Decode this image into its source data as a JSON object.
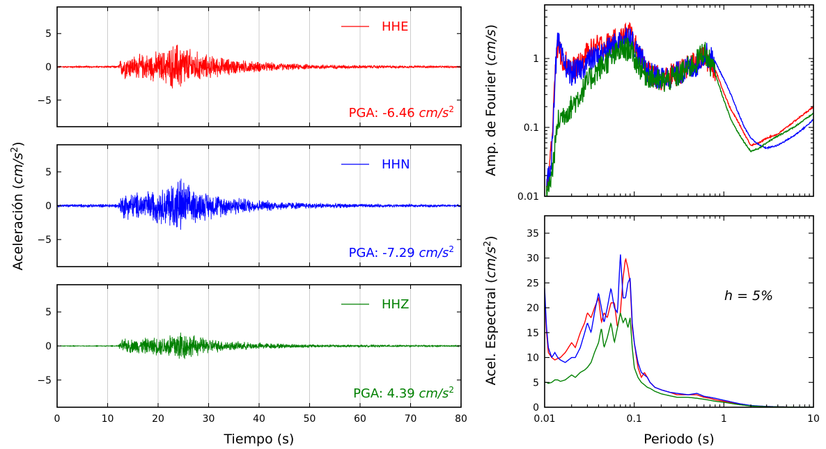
{
  "colors": {
    "HHE": "#ff0000",
    "HHN": "#0000ff",
    "HHZ": "#008000"
  },
  "chart_data": [
    {
      "type": "line",
      "panel": "acc-HHE",
      "series": [
        {
          "name": "HHE",
          "color": "#ff0000"
        }
      ],
      "pga_label": "PGA: -6.46 ",
      "pga_unit": "cm/s",
      "pga_exp": "2",
      "x_range": [
        0,
        80
      ],
      "ylim": [
        -9,
        9
      ],
      "yticks": [
        "5",
        "0",
        "−5"
      ],
      "envelope_t": [
        0,
        12,
        13,
        15,
        18,
        21,
        23,
        24.5,
        26,
        29,
        32,
        36,
        40,
        45,
        50,
        55,
        60,
        65,
        70,
        80
      ],
      "envelope_a": [
        0.12,
        0.15,
        2.1,
        2.0,
        2.3,
        2.8,
        3.9,
        4.4,
        3.2,
        2.2,
        1.7,
        1.2,
        0.9,
        0.6,
        0.45,
        0.35,
        0.3,
        0.25,
        0.2,
        0.15
      ]
    },
    {
      "type": "line",
      "panel": "acc-HHN",
      "series": [
        {
          "name": "HHN",
          "color": "#0000ff"
        }
      ],
      "pga_label": "PGA: -7.29 ",
      "pga_unit": "cm/s",
      "pga_exp": "2",
      "x_range": [
        0,
        80
      ],
      "ylim": [
        -9,
        9
      ],
      "yticks": [
        "5",
        "0",
        "−5"
      ],
      "envelope_t": [
        0,
        12,
        13,
        15,
        18,
        21,
        23,
        24.5,
        26,
        29,
        32,
        36,
        40,
        45,
        50,
        55,
        60,
        65,
        70,
        80
      ],
      "envelope_a": [
        0.25,
        0.3,
        2.2,
        2.2,
        2.6,
        3.0,
        4.6,
        4.8,
        3.3,
        2.4,
        1.9,
        1.4,
        1.0,
        0.7,
        0.5,
        0.4,
        0.32,
        0.28,
        0.25,
        0.2
      ]
    },
    {
      "type": "line",
      "panel": "acc-HHZ",
      "series": [
        {
          "name": "HHZ",
          "color": "#008000"
        }
      ],
      "pga_label": "PGA: 4.39 ",
      "pga_unit": "cm/s",
      "pga_exp": "2",
      "x_range": [
        0,
        80
      ],
      "ylim": [
        -9,
        9
      ],
      "yticks": [
        "5",
        "0",
        "−5"
      ],
      "envelope_t": [
        0,
        12,
        13,
        15,
        18,
        21,
        23,
        24.5,
        26,
        29,
        32,
        36,
        40,
        45,
        50,
        55,
        60,
        65,
        70,
        80
      ],
      "envelope_a": [
        0.05,
        0.06,
        1.2,
        1.2,
        1.4,
        1.6,
        2.6,
        2.9,
        2.0,
        1.4,
        1.0,
        0.7,
        0.55,
        0.4,
        0.3,
        0.22,
        0.18,
        0.15,
        0.12,
        0.1
      ]
    },
    {
      "type": "line",
      "panel": "fourier",
      "xscale": "log",
      "yscale": "log",
      "x_range": [
        0.01,
        10
      ],
      "ylim": [
        0.01,
        6
      ],
      "yticks": [
        "1",
        "0.1",
        "0.01"
      ],
      "series": [
        {
          "name": "HHE",
          "color": "#ff0000",
          "x": [
            0.0105,
            0.012,
            0.013,
            0.014,
            0.016,
            0.02,
            0.025,
            0.03,
            0.04,
            0.05,
            0.07,
            0.09,
            0.1,
            0.13,
            0.15,
            0.2,
            0.3,
            0.5,
            0.6,
            0.8,
            1.0,
            1.2,
            1.4,
            1.7,
            2.0,
            2.5,
            3,
            4,
            6,
            8,
            10
          ],
          "y": [
            0.012,
            0.05,
            0.7,
            1.5,
            1.0,
            0.7,
            0.8,
            1.2,
            1.5,
            1.6,
            1.9,
            2.5,
            1.6,
            0.8,
            0.6,
            0.5,
            0.6,
            0.9,
            1.1,
            0.7,
            0.32,
            0.18,
            0.13,
            0.08,
            0.055,
            0.06,
            0.07,
            0.08,
            0.12,
            0.16,
            0.2
          ]
        },
        {
          "name": "HHN",
          "color": "#0000ff",
          "x": [
            0.0105,
            0.012,
            0.013,
            0.014,
            0.016,
            0.02,
            0.025,
            0.03,
            0.04,
            0.05,
            0.07,
            0.09,
            0.1,
            0.13,
            0.15,
            0.2,
            0.3,
            0.5,
            0.6,
            0.8,
            1.0,
            1.2,
            1.4,
            1.7,
            2.0,
            2.5,
            3,
            4,
            6,
            8,
            10
          ],
          "y": [
            0.012,
            0.04,
            0.5,
            1.8,
            0.9,
            0.6,
            0.7,
            0.9,
            1.1,
            1.3,
            1.8,
            2.2,
            1.5,
            0.8,
            0.6,
            0.5,
            0.6,
            0.8,
            1.2,
            0.9,
            0.5,
            0.3,
            0.18,
            0.1,
            0.07,
            0.055,
            0.05,
            0.055,
            0.075,
            0.1,
            0.13
          ]
        },
        {
          "name": "HHZ",
          "color": "#008000",
          "x": [
            0.0105,
            0.012,
            0.013,
            0.014,
            0.016,
            0.02,
            0.025,
            0.03,
            0.04,
            0.05,
            0.07,
            0.09,
            0.1,
            0.13,
            0.15,
            0.2,
            0.3,
            0.5,
            0.6,
            0.8,
            1.0,
            1.2,
            1.4,
            1.7,
            2.0,
            2.5,
            3,
            4,
            6,
            8,
            10
          ],
          "y": [
            0.01,
            0.02,
            0.05,
            0.12,
            0.15,
            0.2,
            0.3,
            0.45,
            0.7,
            0.9,
            1.3,
            1.4,
            1.0,
            0.6,
            0.55,
            0.45,
            0.55,
            0.9,
            1.3,
            0.6,
            0.25,
            0.13,
            0.09,
            0.06,
            0.045,
            0.05,
            0.06,
            0.075,
            0.1,
            0.13,
            0.16
          ]
        }
      ]
    },
    {
      "type": "line",
      "panel": "spectral",
      "xscale": "log",
      "x_range": [
        0.01,
        10
      ],
      "ylim": [
        0,
        38.5
      ],
      "yticks": [
        "35",
        "30",
        "25",
        "20",
        "15",
        "10",
        "5",
        "0"
      ],
      "ytick_values": [
        35,
        30,
        25,
        20,
        15,
        10,
        5,
        0
      ],
      "xticks": [
        "0.01",
        "0.1",
        "1",
        "10"
      ],
      "annotation": "h = 5%",
      "series": [
        {
          "name": "HHE",
          "color": "#ff0000",
          "x": [
            0.01,
            0.0105,
            0.011,
            0.012,
            0.013,
            0.014,
            0.015,
            0.017,
            0.02,
            0.022,
            0.025,
            0.028,
            0.03,
            0.033,
            0.036,
            0.04,
            0.043,
            0.046,
            0.05,
            0.055,
            0.06,
            0.065,
            0.07,
            0.075,
            0.08,
            0.085,
            0.09,
            0.095,
            0.1,
            0.11,
            0.12,
            0.13,
            0.14,
            0.15,
            0.17,
            0.2,
            0.25,
            0.3,
            0.4,
            0.5,
            0.6,
            0.7,
            0.8,
            1.0,
            1.5,
            2.0,
            3,
            5,
            10
          ],
          "y": [
            23,
            15,
            11,
            10,
            9.5,
            9.8,
            10,
            11,
            13,
            12,
            15,
            17,
            19,
            18,
            20,
            22,
            17,
            19,
            18,
            21,
            21,
            16,
            19,
            26,
            30,
            28,
            25,
            16,
            13,
            8,
            6,
            7,
            6,
            5,
            4,
            3.5,
            3,
            2.5,
            2.5,
            2.5,
            2,
            1.8,
            1.5,
            1.2,
            0.6,
            0.3,
            0.15,
            0.05,
            0.02
          ]
        },
        {
          "name": "HHN",
          "color": "#0000ff",
          "x": [
            0.01,
            0.0105,
            0.011,
            0.012,
            0.013,
            0.014,
            0.015,
            0.017,
            0.02,
            0.022,
            0.025,
            0.028,
            0.03,
            0.033,
            0.036,
            0.04,
            0.043,
            0.046,
            0.05,
            0.055,
            0.06,
            0.065,
            0.07,
            0.075,
            0.08,
            0.085,
            0.09,
            0.095,
            0.1,
            0.11,
            0.12,
            0.13,
            0.14,
            0.15,
            0.17,
            0.2,
            0.25,
            0.3,
            0.4,
            0.5,
            0.6,
            0.7,
            0.8,
            1.0,
            1.5,
            2.0,
            3,
            5,
            10
          ],
          "y": [
            24,
            16,
            12,
            10,
            11,
            10,
            9.5,
            9,
            10,
            10,
            12,
            15,
            17,
            15,
            19,
            23,
            20,
            17,
            20,
            24,
            20,
            19,
            31,
            22,
            22,
            25,
            26,
            17,
            13,
            9,
            7,
            6.5,
            6,
            5,
            4,
            3.5,
            3,
            2.8,
            2.5,
            2.8,
            2.2,
            2,
            1.8,
            1.4,
            0.7,
            0.35,
            0.15,
            0.05,
            0.02
          ]
        },
        {
          "name": "HHZ",
          "color": "#008000",
          "x": [
            0.01,
            0.0105,
            0.011,
            0.012,
            0.013,
            0.014,
            0.015,
            0.017,
            0.02,
            0.022,
            0.025,
            0.028,
            0.03,
            0.033,
            0.036,
            0.04,
            0.043,
            0.046,
            0.05,
            0.055,
            0.06,
            0.065,
            0.07,
            0.075,
            0.08,
            0.085,
            0.09,
            0.095,
            0.1,
            0.11,
            0.12,
            0.13,
            0.14,
            0.15,
            0.17,
            0.2,
            0.25,
            0.3,
            0.4,
            0.5,
            0.6,
            0.7,
            0.8,
            1.0,
            1.5,
            2.0,
            3,
            5,
            10
          ],
          "y": [
            5,
            5,
            4.8,
            5,
            5.5,
            5.5,
            5.2,
            5.5,
            6.5,
            6,
            7,
            7.5,
            8,
            9,
            11,
            13,
            16,
            12,
            14,
            17,
            13,
            16,
            19,
            17,
            18,
            16,
            18,
            12,
            8,
            6,
            5,
            4.5,
            4,
            3.8,
            3.2,
            2.7,
            2.3,
            2,
            2,
            1.8,
            1.6,
            1.4,
            1.2,
            1.0,
            0.5,
            0.25,
            0.1,
            0.04,
            0.02
          ]
        }
      ]
    }
  ],
  "shared": {
    "time_xticks": [
      "0",
      "10",
      "20",
      "30",
      "40",
      "50",
      "60",
      "70",
      "80"
    ],
    "time_xlabel": "Tiempo (s)",
    "acc_ylabel_pre": "Aceleración (",
    "acc_ylabel_unit": "cm/s",
    "acc_ylabel_exp": "2",
    "acc_ylabel_post": ")",
    "fourier_ylabel_pre": "Amp. de Fourier (",
    "fourier_ylabel_unit": "cm/s",
    "fourier_ylabel_post": ")",
    "spectral_ylabel_pre": "Acel. Espectral (",
    "spectral_ylabel_unit": "cm/s",
    "spectral_ylabel_exp": "2",
    "spectral_ylabel_post": ")",
    "period_xlabel": "Periodo (s)"
  }
}
